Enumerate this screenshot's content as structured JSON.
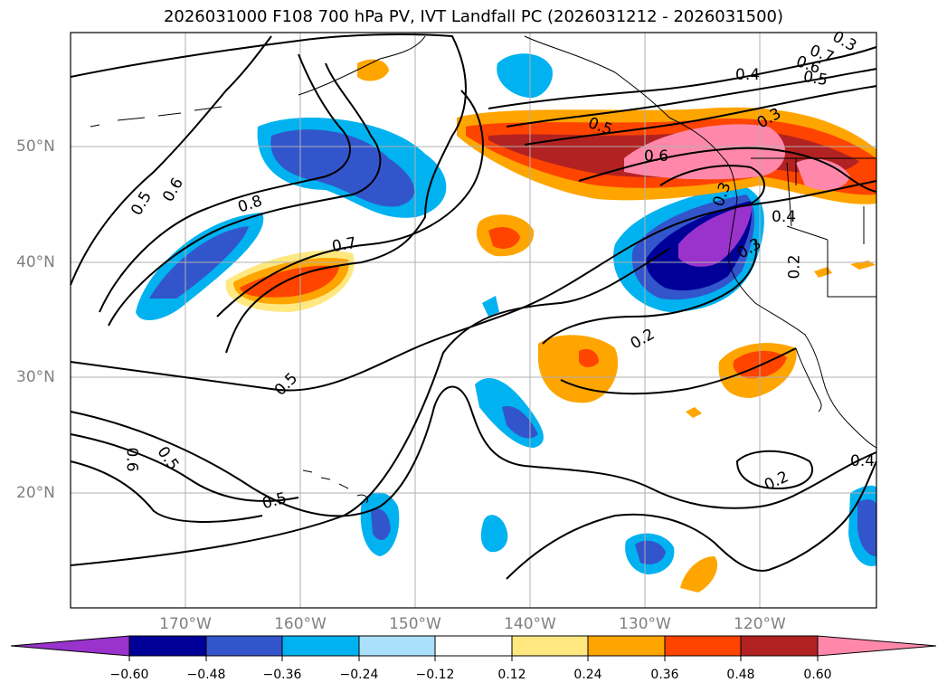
{
  "title": "2026031000 F108 700 hPa PV, IVT Landfall PC (2026031212 - 2026031500)",
  "lat_labels": [
    "50°N",
    "40°N",
    "30°N",
    "20°N"
  ],
  "lon_labels": [
    "170°W",
    "160°W",
    "150°W",
    "140°W",
    "130°W",
    "120°W"
  ],
  "colorbar": {
    "tick_labels": [
      "−0.60",
      "−0.48",
      "−0.36",
      "−0.24",
      "−0.12",
      "0.12",
      "0.24",
      "0.36",
      "0.48",
      "0.60"
    ],
    "colors": [
      "#9933cc",
      "#000099",
      "#3355cc",
      "#00b2f0",
      "#aae0fa",
      "#ffffff",
      "#ffe880",
      "#ffa500",
      "#ff4400",
      "#b22222",
      "#ff88aa"
    ]
  },
  "contour_labels": [
    "0.8",
    "0.7",
    "0.6",
    "0.5",
    "0.5",
    "0.7",
    "0.6",
    "0.5",
    "0.4",
    "0.5",
    "0.6",
    "0.3",
    "0.4",
    "0.3",
    "0.2",
    "0.2",
    "0.5",
    "0.6",
    "0.5",
    "0.2",
    "0.4",
    "0.3",
    "0.3"
  ],
  "colors": {
    "land_outline": "#000000",
    "grid": "#b0b0b0",
    "axis_label": "#808080"
  }
}
